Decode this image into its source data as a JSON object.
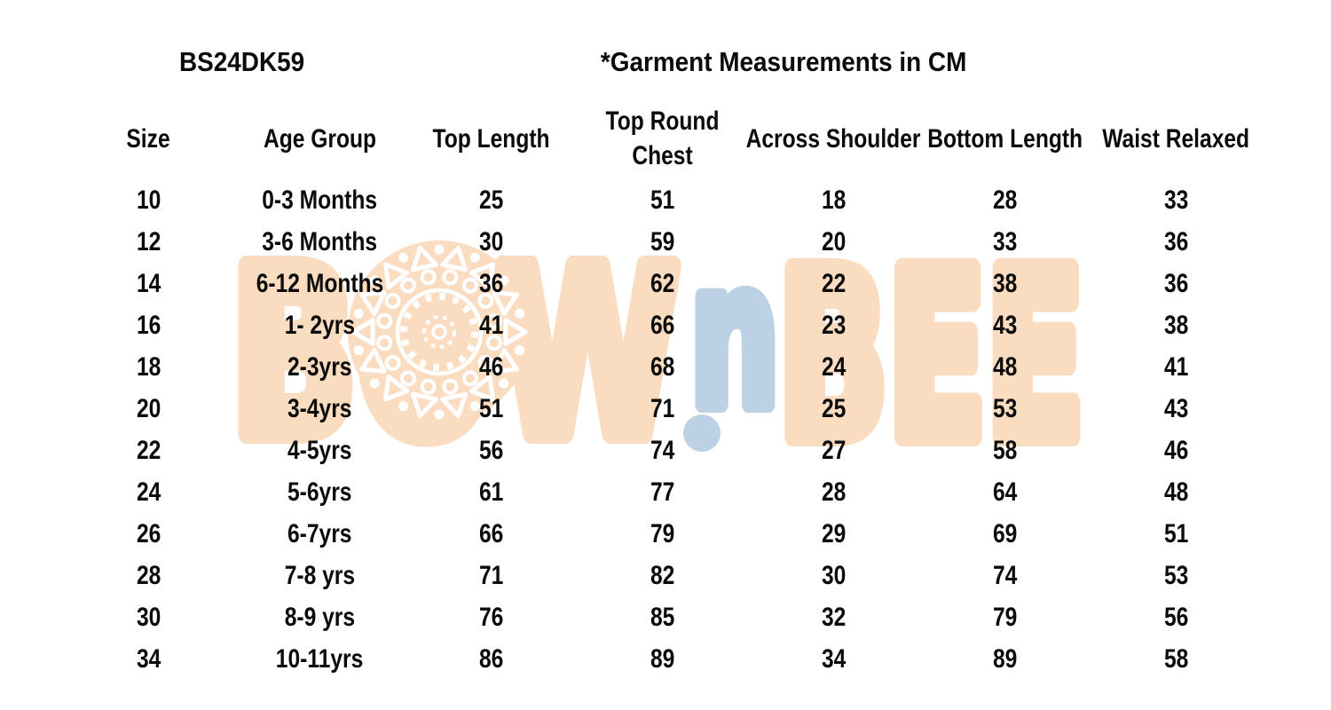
{
  "header": {
    "style_code": "BS24DK59",
    "title": "*Garment Measurements in CM"
  },
  "watermark": {
    "left": "BOW",
    "middle": "n",
    "right": "BEE",
    "peach": "#FADCC1",
    "blue": "#BCD1E4",
    "ornament_white": "#ffffff"
  },
  "chart_data": {
    "type": "table",
    "columns": [
      "Size",
      "Age Group",
      "Top Length",
      "Top Round Chest",
      "Across Shoulder",
      "Bottom Length",
      "Waist Relaxed"
    ],
    "rows": [
      [
        "10",
        "0-3 Months",
        "25",
        "51",
        "18",
        "28",
        "33"
      ],
      [
        "12",
        "3-6 Months",
        "30",
        "59",
        "20",
        "33",
        "36"
      ],
      [
        "14",
        "6-12 Months",
        "36",
        "62",
        "22",
        "38",
        "36"
      ],
      [
        "16",
        "1- 2yrs",
        "41",
        "66",
        "23",
        "43",
        "38"
      ],
      [
        "18",
        "2-3yrs",
        "46",
        "68",
        "24",
        "48",
        "41"
      ],
      [
        "20",
        "3-4yrs",
        "51",
        "71",
        "25",
        "53",
        "43"
      ],
      [
        "22",
        "4-5yrs",
        "56",
        "74",
        "27",
        "58",
        "46"
      ],
      [
        "24",
        "5-6yrs",
        "61",
        "77",
        "28",
        "64",
        "48"
      ],
      [
        "26",
        "6-7yrs",
        "66",
        "79",
        "29",
        "69",
        "51"
      ],
      [
        "28",
        "7-8 yrs",
        "71",
        "82",
        "30",
        "74",
        "53"
      ],
      [
        "30",
        "8-9 yrs",
        "76",
        "85",
        "32",
        "79",
        "56"
      ],
      [
        "34",
        "10-11yrs",
        "86",
        "89",
        "34",
        "89",
        "58"
      ]
    ]
  }
}
